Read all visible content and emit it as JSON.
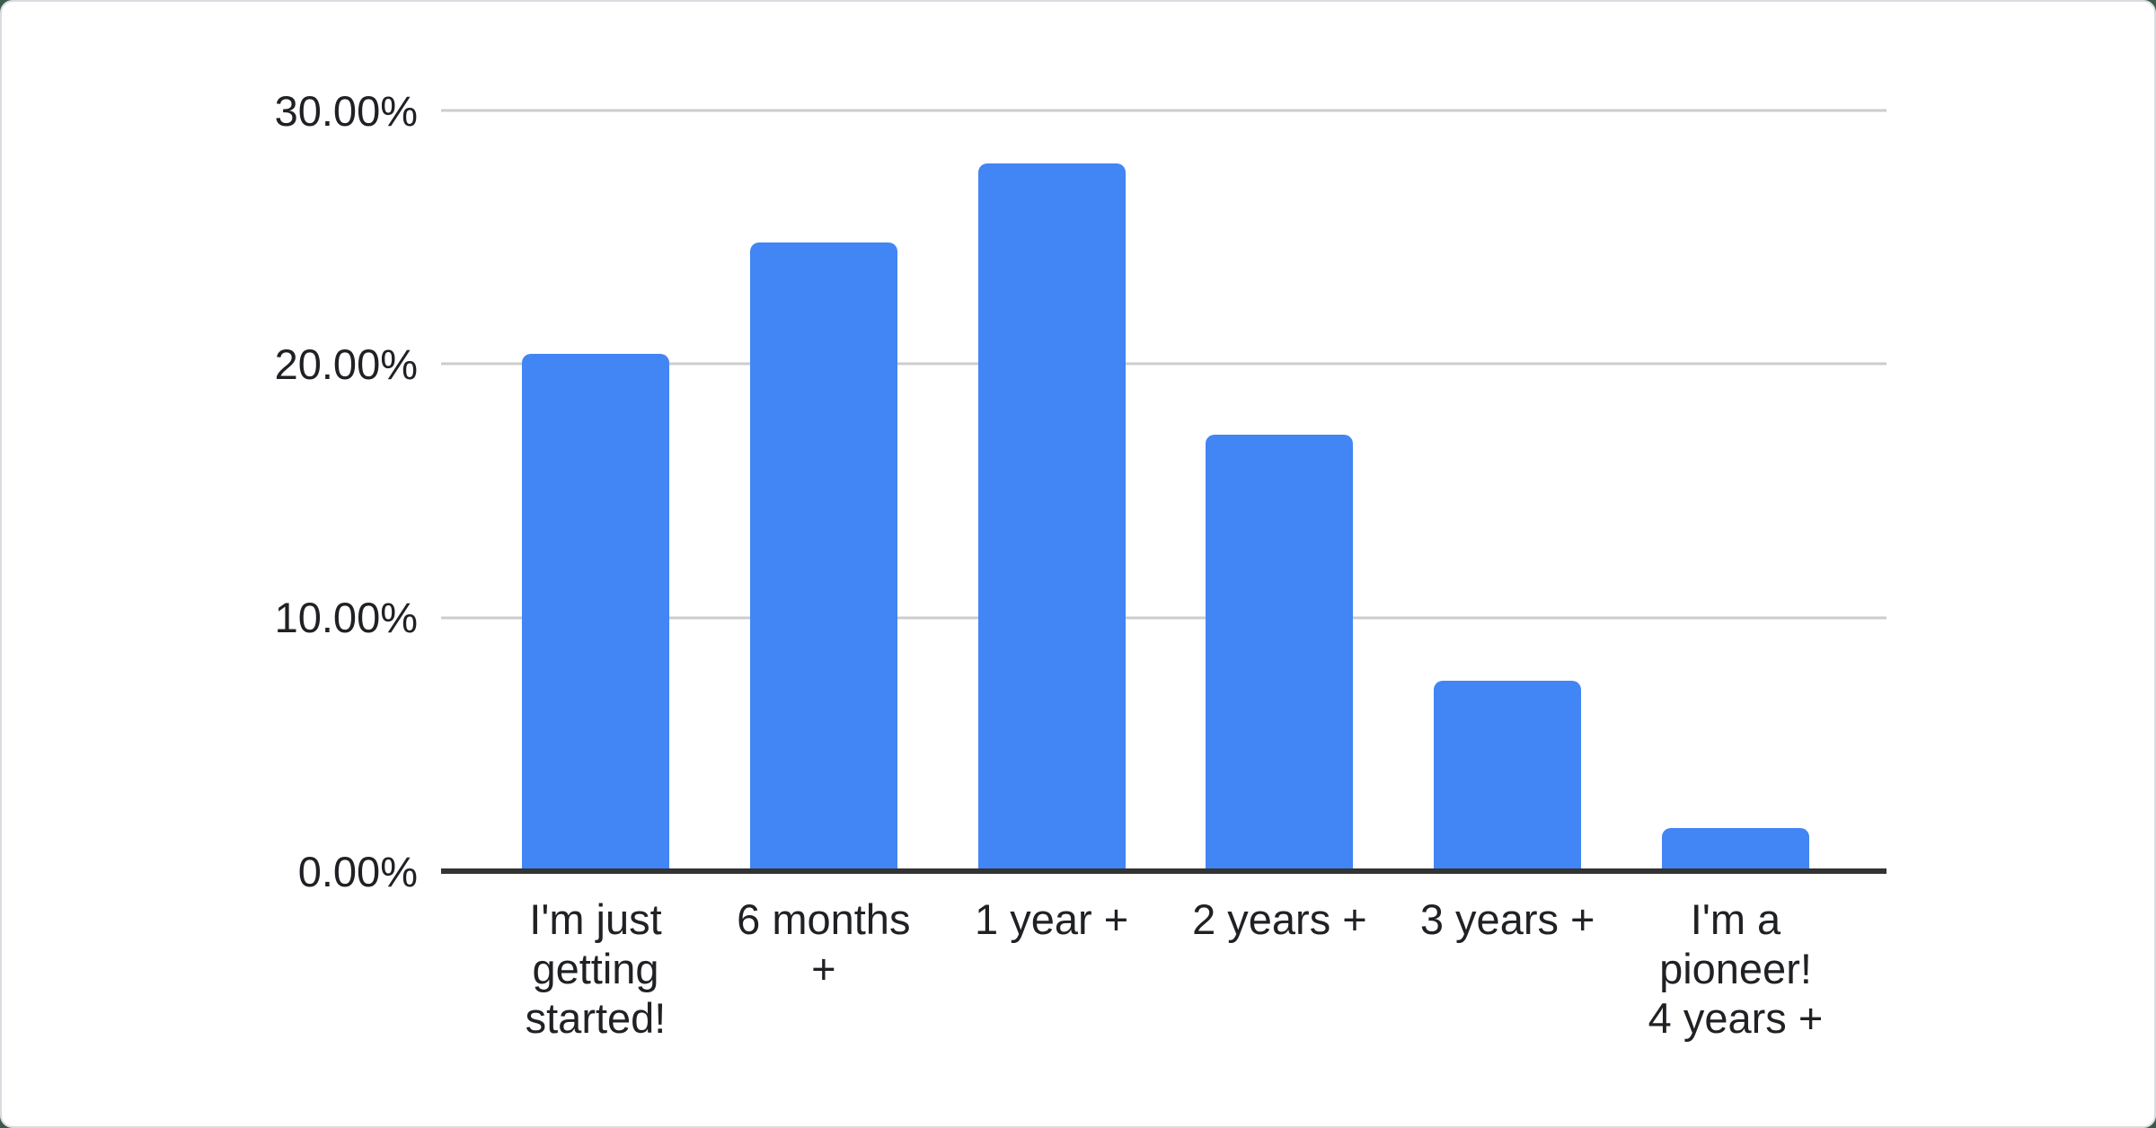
{
  "chart_data": {
    "type": "bar",
    "title": "",
    "categories": [
      "I'm just getting started!",
      "6 months +",
      "1 year +",
      "2 years +",
      "3 years +",
      "I'm a pioneer! 4 years +"
    ],
    "category_lines": [
      [
        "I'm just",
        "getting",
        "started!"
      ],
      [
        "6 months",
        "+"
      ],
      [
        "1 year +"
      ],
      [
        "2 years +"
      ],
      [
        "3 years +"
      ],
      [
        "I'm a",
        "pioneer!",
        "4 years +"
      ]
    ],
    "values": [
      20.4,
      24.8,
      27.9,
      17.2,
      7.5,
      1.7
    ],
    "value_unit": "%",
    "y_axis": {
      "ticks": [
        {
          "label": "30.00%",
          "value": 30
        },
        {
          "label": "20.00%",
          "value": 20
        },
        {
          "label": "10.00%",
          "value": 10
        },
        {
          "label": "0.00%",
          "value": 0
        }
      ],
      "ylim": [
        0,
        30
      ]
    },
    "xlabel": "",
    "ylabel": "",
    "legend": "none",
    "grid": true,
    "colors": {
      "bar": "#4285f4",
      "gridline": "#cccccc",
      "axis": "#333333",
      "label": "#202124",
      "card_background": "#ffffff",
      "page_background": "#3c5c4c"
    }
  }
}
